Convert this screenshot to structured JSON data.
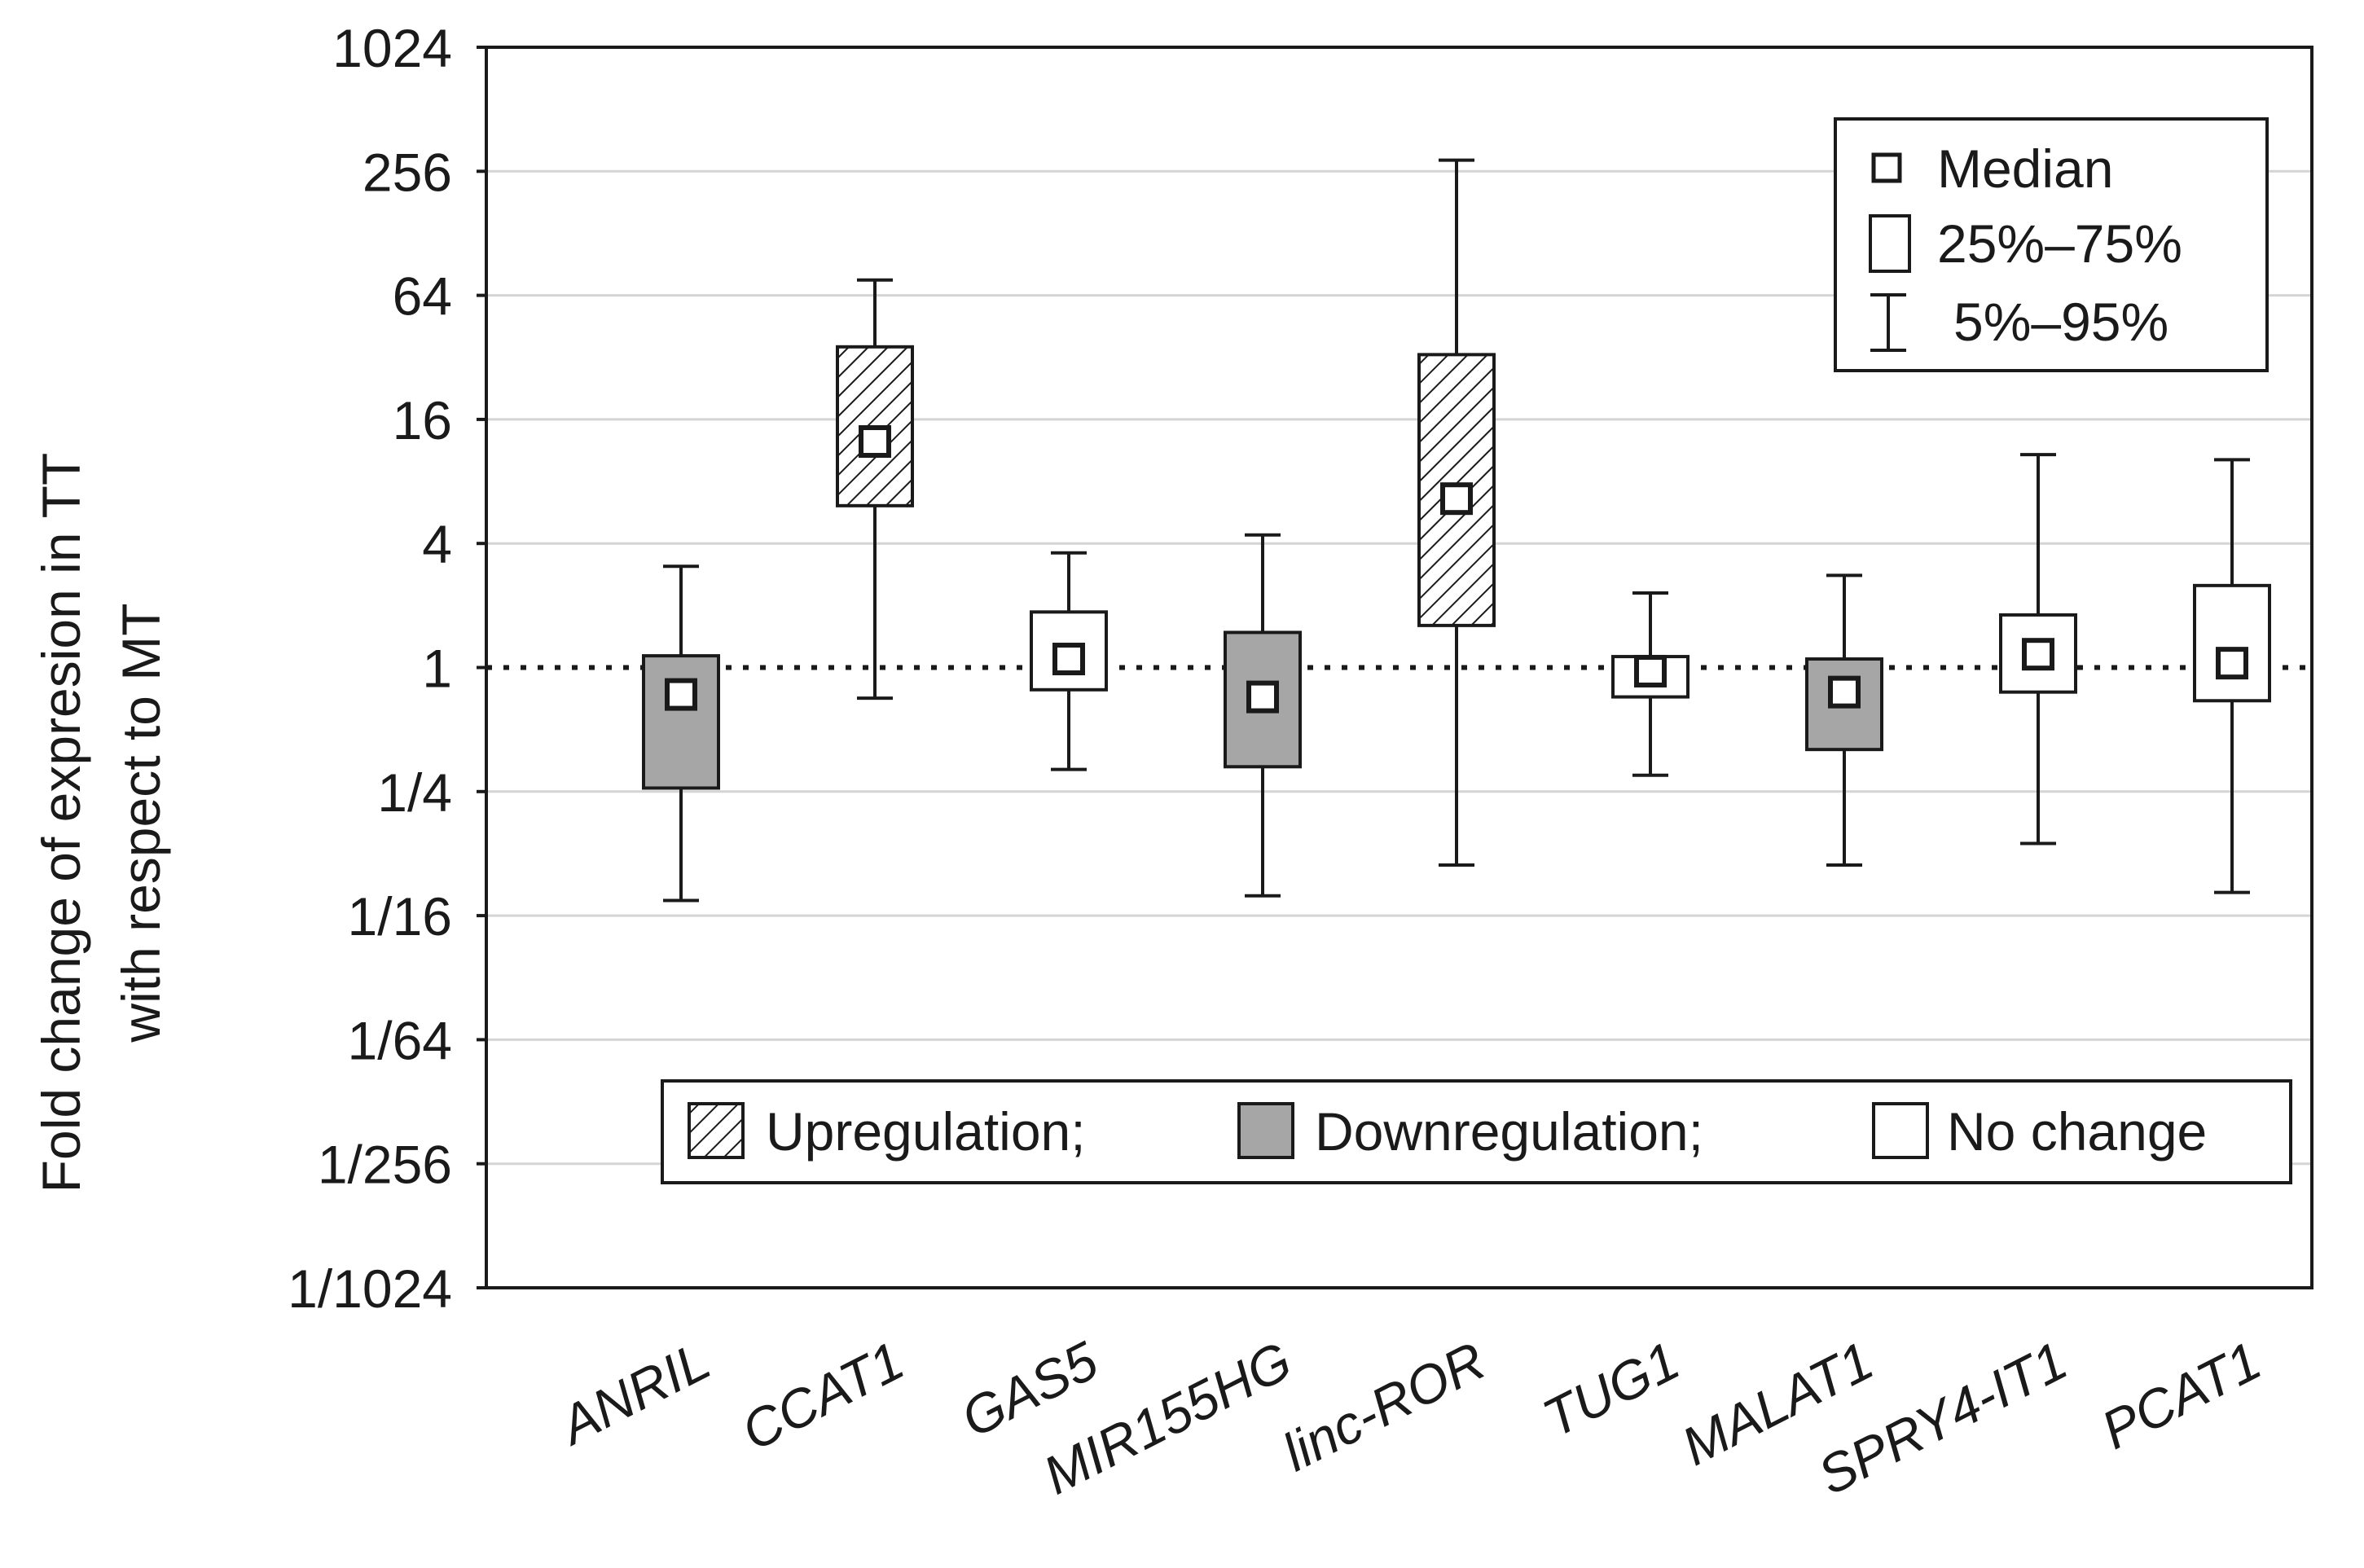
{
  "chart_data": {
    "type": "boxplot",
    "ylabel_lines": [
      "Fold change of expresion in TT",
      "with respect to MT"
    ],
    "y_scale": "log2",
    "ylim": [
      0.0009765625,
      1024
    ],
    "y_ticks": [
      {
        "value": 1024,
        "label": "1024"
      },
      {
        "value": 256,
        "label": "256"
      },
      {
        "value": 64,
        "label": "64"
      },
      {
        "value": 16,
        "label": "16"
      },
      {
        "value": 4,
        "label": "4"
      },
      {
        "value": 1,
        "label": "1"
      },
      {
        "value": 0.25,
        "label": "1/4"
      },
      {
        "value": 0.0625,
        "label": "1/16"
      },
      {
        "value": 0.015625,
        "label": "1/64"
      },
      {
        "value": 0.00390625,
        "label": "1/256"
      },
      {
        "value": 0.0009765625,
        "label": "1/1024"
      }
    ],
    "reference_line": 1,
    "grid": true,
    "categories": [
      "ANRIL",
      "CCAT1",
      "GAS5",
      "MIR155HG",
      "linc-ROR",
      "TUG1",
      "MALAT1",
      "SPRY4-IT1",
      "PCAT1"
    ],
    "series": [
      {
        "name": "ANRIL",
        "p5": 0.074,
        "q1": 0.26,
        "median": 0.74,
        "q3": 1.14,
        "p95": 3.1,
        "regulation": "down"
      },
      {
        "name": "CCAT1",
        "p5": 0.71,
        "q1": 6.1,
        "median": 12.5,
        "q3": 36,
        "p95": 76,
        "regulation": "up"
      },
      {
        "name": "GAS5",
        "p5": 0.32,
        "q1": 0.78,
        "median": 1.1,
        "q3": 1.86,
        "p95": 3.6,
        "regulation": "none"
      },
      {
        "name": "MIR155HG",
        "p5": 0.078,
        "q1": 0.33,
        "median": 0.72,
        "q3": 1.48,
        "p95": 4.4,
        "regulation": "down"
      },
      {
        "name": "linc-ROR",
        "p5": 0.11,
        "q1": 1.6,
        "median": 6.6,
        "q3": 33,
        "p95": 290,
        "regulation": "up"
      },
      {
        "name": "TUG1",
        "p5": 0.3,
        "q1": 0.72,
        "median": 0.96,
        "q3": 1.13,
        "p95": 2.3,
        "regulation": "none"
      },
      {
        "name": "MALAT1",
        "p5": 0.11,
        "q1": 0.4,
        "median": 0.76,
        "q3": 1.1,
        "p95": 2.8,
        "regulation": "down"
      },
      {
        "name": "SPRY4-IT1",
        "p5": 0.14,
        "q1": 0.76,
        "median": 1.16,
        "q3": 1.8,
        "p95": 10.8,
        "regulation": "none"
      },
      {
        "name": "PCAT1",
        "p5": 0.081,
        "q1": 0.69,
        "median": 1.05,
        "q3": 2.5,
        "p95": 10.2,
        "regulation": "none"
      }
    ],
    "legend_stats": {
      "position": "top-right",
      "items": [
        {
          "symbol": "median",
          "label": "Median"
        },
        {
          "symbol": "box",
          "label": "25%–75%"
        },
        {
          "symbol": "whisker",
          "label": "5%–95%"
        }
      ]
    },
    "legend_regulation": {
      "position": "bottom",
      "items": [
        {
          "key": "up",
          "label": "Upregulation;"
        },
        {
          "key": "down",
          "label": "Downregulation;"
        },
        {
          "key": "none",
          "label": "No change"
        }
      ]
    },
    "colors": {
      "axis": "#1a1a1a",
      "grid": "#d4d4d4",
      "down_fill": "#a6a6a6",
      "none_fill": "#ffffff",
      "up_fill": "#ffffff",
      "hatch": "#1a1a1a"
    }
  }
}
